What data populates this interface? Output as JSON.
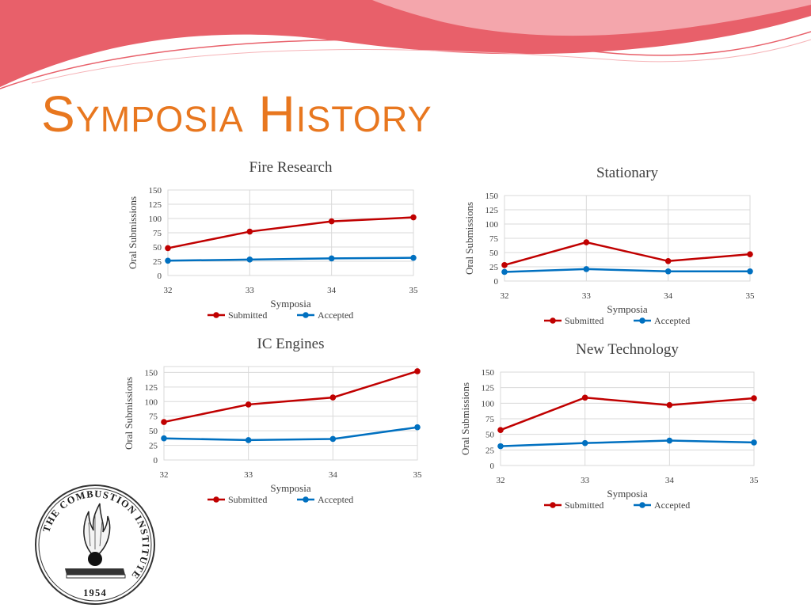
{
  "slide": {
    "title": "Symposia History",
    "title_color": "#e8771f"
  },
  "banner": {
    "primary_color": "#e8606a",
    "light_color": "#f6b3b7"
  },
  "logo": {
    "text": "THE COMBUSTION INSTITUTE",
    "year": "1954"
  },
  "legend": {
    "submitted": "Submitted",
    "accepted": "Accepted"
  },
  "chart_data": [
    {
      "type": "line",
      "title": "Fire Research",
      "xlabel": "Symposia",
      "ylabel": "Oral Submissions",
      "categories": [
        "32",
        "33",
        "34",
        "35"
      ],
      "ylim": [
        0,
        150
      ],
      "yticks": [
        0,
        25,
        50,
        75,
        100,
        125,
        150
      ],
      "grid": true,
      "legend": "bottom",
      "series": [
        {
          "name": "Submitted",
          "color": "#c00000",
          "values": [
            48,
            77,
            95,
            102
          ]
        },
        {
          "name": "Accepted",
          "color": "#0070c0",
          "values": [
            26,
            28,
            30,
            31
          ]
        }
      ]
    },
    {
      "type": "line",
      "title": "Stationary",
      "xlabel": "Symposia",
      "ylabel": "Oral Submissions",
      "categories": [
        "32",
        "33",
        "34",
        "35"
      ],
      "ylim": [
        0,
        150
      ],
      "yticks": [
        0,
        25,
        50,
        75,
        100,
        125,
        150
      ],
      "grid": true,
      "legend": "bottom",
      "series": [
        {
          "name": "Submitted",
          "color": "#c00000",
          "values": [
            28,
            68,
            35,
            47
          ]
        },
        {
          "name": "Accepted",
          "color": "#0070c0",
          "values": [
            16,
            21,
            17,
            17
          ]
        }
      ]
    },
    {
      "type": "line",
      "title": "IC Engines",
      "xlabel": "Symposia",
      "ylabel": "Oral Submissions",
      "categories": [
        "32",
        "33",
        "34",
        "35"
      ],
      "ylim": [
        0,
        160
      ],
      "yticks": [
        0,
        25,
        50,
        75,
        100,
        125,
        150
      ],
      "grid": true,
      "legend": "bottom",
      "series": [
        {
          "name": "Submitted",
          "color": "#c00000",
          "values": [
            65,
            95,
            107,
            152
          ]
        },
        {
          "name": "Accepted",
          "color": "#0070c0",
          "values": [
            37,
            34,
            36,
            56
          ]
        }
      ]
    },
    {
      "type": "line",
      "title": "New Technology",
      "xlabel": "Symposia",
      "ylabel": "Oral Submissions",
      "categories": [
        "32",
        "33",
        "34",
        "35"
      ],
      "ylim": [
        0,
        150
      ],
      "yticks": [
        0,
        25,
        50,
        75,
        100,
        125,
        150
      ],
      "grid": true,
      "legend": "bottom",
      "series": [
        {
          "name": "Submitted",
          "color": "#c00000",
          "values": [
            57,
            109,
            97,
            108
          ]
        },
        {
          "name": "Accepted",
          "color": "#0070c0",
          "values": [
            31,
            36,
            40,
            37
          ]
        }
      ]
    }
  ]
}
